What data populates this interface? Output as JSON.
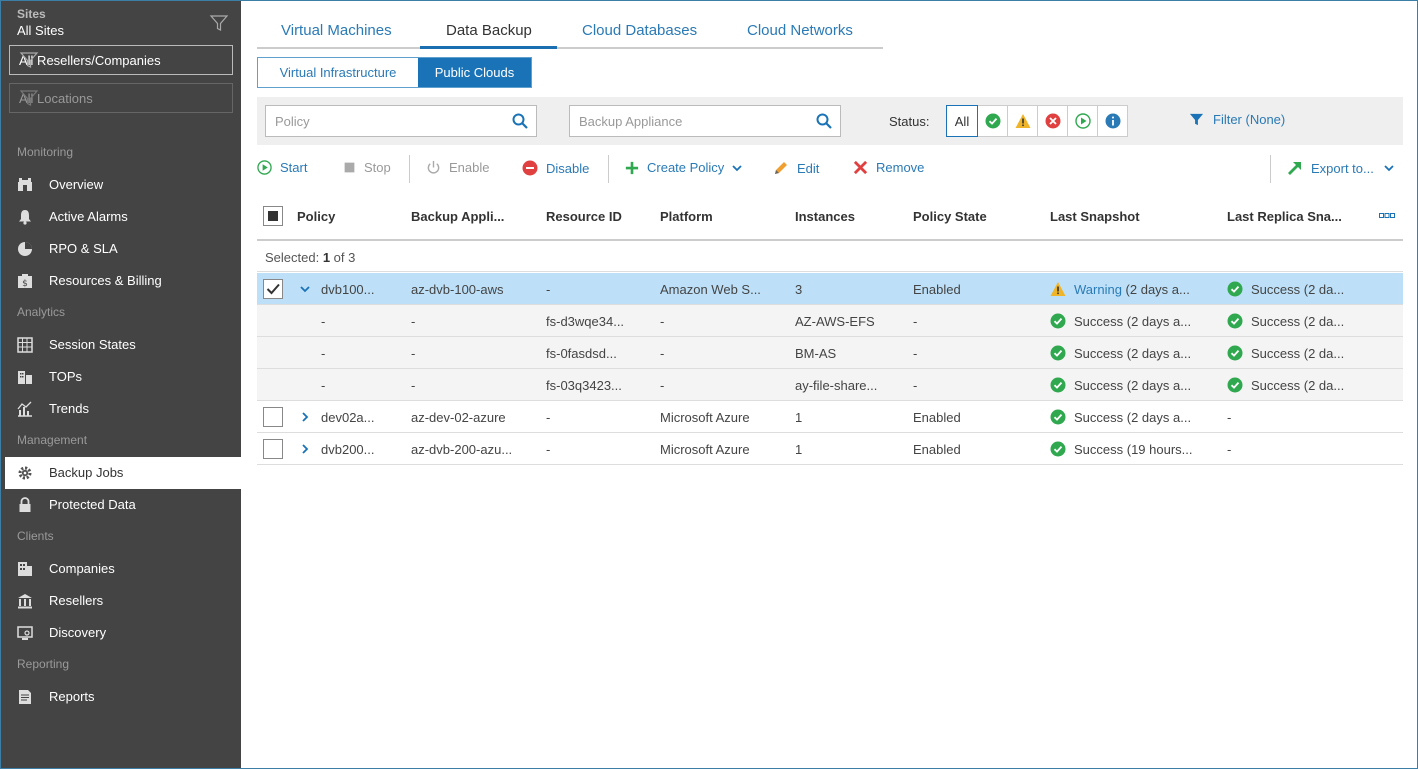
{
  "sidebar": {
    "sites_label": "Sites",
    "sites_value": "All Sites",
    "resellers": "All Resellers/Companies",
    "locations": "All Locations",
    "sections": {
      "monitoring": "Monitoring",
      "analytics": "Analytics",
      "management": "Management",
      "clients": "Clients",
      "reporting": "Reporting"
    },
    "items": {
      "overview": "Overview",
      "active_alarms": "Active Alarms",
      "rpo_sla": "RPO & SLA",
      "resources_billing": "Resources & Billing",
      "session_states": "Session States",
      "tops": "TOPs",
      "trends": "Trends",
      "backup_jobs": "Backup Jobs",
      "protected_data": "Protected Data",
      "companies": "Companies",
      "resellers": "Resellers",
      "discovery": "Discovery",
      "reports": "Reports"
    }
  },
  "tabs": {
    "virtual_machines": "Virtual Machines",
    "data_backup": "Data Backup",
    "cloud_databases": "Cloud Databases",
    "cloud_networks": "Cloud Networks",
    "active": "Data Backup"
  },
  "subtabs": {
    "virtual_infrastructure": "Virtual Infrastructure",
    "public_clouds": "Public Clouds",
    "active": "Public Clouds"
  },
  "filters": {
    "policy_placeholder": "Policy",
    "appliance_placeholder": "Backup Appliance",
    "status_label": "Status:",
    "status_all": "All",
    "filter_link": "Filter (None)"
  },
  "toolbar": {
    "start": "Start",
    "stop": "Stop",
    "enable": "Enable",
    "disable": "Disable",
    "create_policy": "Create Policy",
    "edit": "Edit",
    "remove": "Remove",
    "export": "Export to..."
  },
  "grid": {
    "columns": {
      "policy": "Policy",
      "backup_appliance": "Backup Appli...",
      "resource_id": "Resource ID",
      "platform": "Platform",
      "instances": "Instances",
      "policy_state": "Policy State",
      "last_snapshot": "Last Snapshot",
      "last_replica": "Last Replica Sna..."
    },
    "selected_prefix": "Selected: ",
    "selected_count": "1",
    "selected_suffix": " of 3",
    "rows": [
      {
        "policy": "dvb100...",
        "appliance": "az-dvb-100-aws",
        "resource": "-",
        "platform": "Amazon Web S...",
        "instances": "3",
        "state": "Enabled",
        "snap_link": "Warning",
        "snap_rest": " (2 days a...",
        "replica": "Success (2 da..."
      },
      {
        "policy": "-",
        "appliance": "-",
        "resource": "fs-d3wqe34...",
        "platform": "-",
        "instances": "AZ-AWS-EFS",
        "state": "-",
        "snap": "Success (2 days a...",
        "replica": "Success (2 da..."
      },
      {
        "policy": "-",
        "appliance": "-",
        "resource": "fs-0fasdsd...",
        "platform": "-",
        "instances": "BM-AS",
        "state": "-",
        "snap": "Success (2 days a...",
        "replica": "Success (2 da..."
      },
      {
        "policy": "-",
        "appliance": "-",
        "resource": "fs-03q3423...",
        "platform": "-",
        "instances": "ay-file-share...",
        "state": "-",
        "snap": "Success (2 days a...",
        "replica": "Success (2 da..."
      },
      {
        "policy": "dev02a...",
        "appliance": "az-dev-02-azure",
        "resource": "-",
        "platform": "Microsoft Azure",
        "instances": "1",
        "state": "Enabled",
        "snap": "Success (2 days a...",
        "replica": "-"
      },
      {
        "policy": "dvb200...",
        "appliance": "az-dvb-200-azu...",
        "resource": "-",
        "platform": "Microsoft Azure",
        "instances": "1",
        "state": "Enabled",
        "snap": "Success (19 hours...",
        "replica": "-"
      }
    ]
  },
  "colors": {
    "sidebar_bg": "#444444",
    "accent": "#1a73b6",
    "link": "#2a7ab5",
    "selected_row": "#bde0f8",
    "success": "#2fa84f",
    "warning": "#f0b429",
    "error": "#e04040"
  }
}
